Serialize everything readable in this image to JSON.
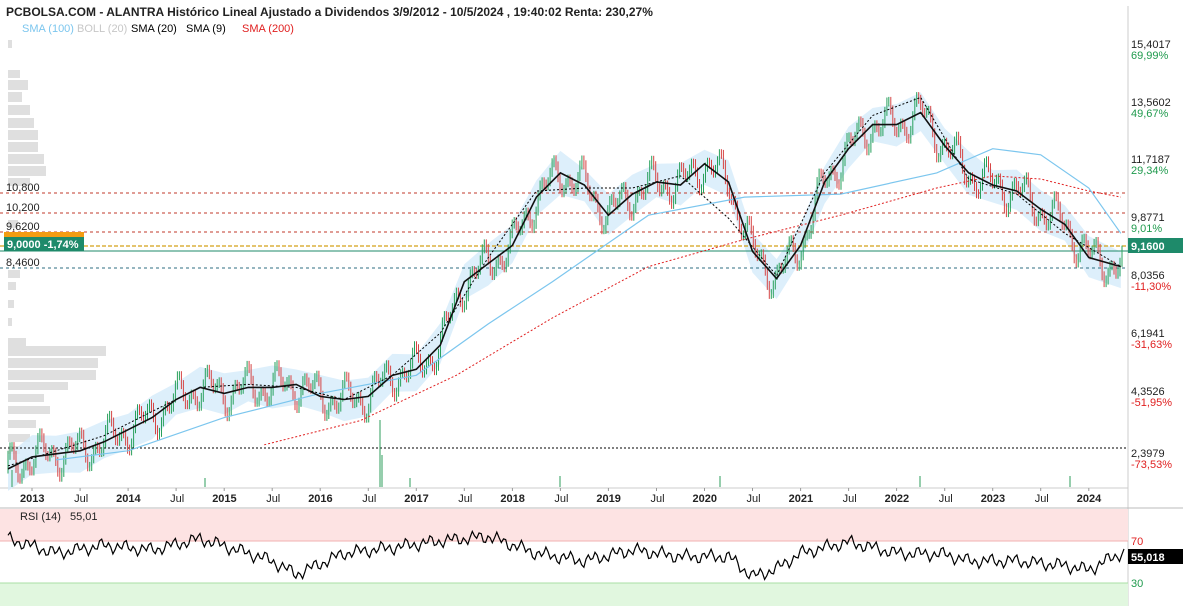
{
  "header": {
    "title": "PCBOLSA.COM - ALANTRA Histórico Lineal Ajustado a Dividendos 3/9/2012 - 10/5/2024 , 19:40:02 Renta: 230,27%"
  },
  "legend": [
    {
      "label": "SMA (100)",
      "color": "#7cc6ee"
    },
    {
      "label": "BOLL (20)",
      "color": "#c7c7c7"
    },
    {
      "label": "SMA (20)",
      "color": "#000000"
    },
    {
      "label": "SMA (9)",
      "color": "#000000"
    },
    {
      "label": "SMA (200)",
      "color": "#e02020"
    }
  ],
  "price_axis": [
    {
      "price": "15,4017",
      "pct": "69,99%",
      "pct_color": "#1f9a4d"
    },
    {
      "price": "13,5602",
      "pct": "49,67%",
      "pct_color": "#1f9a4d"
    },
    {
      "price": "11,7187",
      "pct": "29,34%",
      "pct_color": "#1f9a4d"
    },
    {
      "price": "9,8771",
      "pct": "9,01%",
      "pct_color": "#1f9a4d"
    },
    {
      "price": "8,0356",
      "pct": "-11,30%",
      "pct_color": "#e02020"
    },
    {
      "price": "6,1941",
      "pct": "-31,63%",
      "pct_color": "#e02020"
    },
    {
      "price": "4,3526",
      "pct": "-51,95%",
      "pct_color": "#e02020"
    },
    {
      "price": "2,3979",
      "pct": "-73,53%",
      "pct_color": "#e02020"
    }
  ],
  "level_labels": [
    "10,800",
    "10,200",
    "9,6200",
    "8,4600"
  ],
  "current_label": "9,0000  -1,74%",
  "last_price_badge": "9,1600",
  "time_axis": [
    "2013",
    "Jul",
    "2014",
    "Jul",
    "2015",
    "Jul",
    "2016",
    "Jul",
    "2017",
    "Jul",
    "2018",
    "Jul",
    "2019",
    "Jul",
    "2020",
    "Jul",
    "2021",
    "Jul",
    "2022",
    "Jul",
    "2023",
    "Jul",
    "2024"
  ],
  "rsi": {
    "label": "RSI (14)",
    "value": "55,01",
    "badge": "55,018",
    "levels": [
      "70",
      "30"
    ]
  },
  "chart_data": {
    "type": "line",
    "title": "PCBOLSA.COM - ALANTRA Histórico Lineal Ajustado a Dividendos 3/9/2012 - 10/5/2024 , 19:40:02 Renta: 230,27%",
    "x_range": [
      "2012-09-03",
      "2024-05-10"
    ],
    "ylim": [
      1.9,
      16.4
    ],
    "y_scale": "linear",
    "grid": false,
    "horizontal_levels": [
      10.8,
      10.2,
      9.62,
      9.0,
      8.46,
      2.4
    ],
    "last_price": 9.16,
    "series": [
      {
        "name": "SMA (20)",
        "x": [
          "2012-10",
          "2013-01",
          "2013-04",
          "2013-07",
          "2013-10",
          "2014-01",
          "2014-04",
          "2014-07",
          "2014-10",
          "2015-01",
          "2015-04",
          "2015-07",
          "2015-10",
          "2016-01",
          "2016-04",
          "2016-07",
          "2016-10",
          "2017-01",
          "2017-04",
          "2017-07",
          "2017-10",
          "2018-01",
          "2018-04",
          "2018-07",
          "2018-10",
          "2019-01",
          "2019-04",
          "2019-07",
          "2019-10",
          "2020-01",
          "2020-04",
          "2020-07",
          "2020-10",
          "2021-01",
          "2021-04",
          "2021-07",
          "2021-10",
          "2022-01",
          "2022-04",
          "2022-07",
          "2022-10",
          "2023-01",
          "2023-04",
          "2023-07",
          "2023-10",
          "2024-01",
          "2024-05"
        ],
        "values": [
          2.2,
          2.6,
          2.7,
          2.8,
          3.1,
          3.5,
          3.9,
          4.5,
          4.9,
          4.7,
          4.9,
          4.9,
          5.0,
          4.6,
          4.5,
          4.6,
          5.3,
          5.5,
          6.3,
          8.4,
          9.0,
          9.6,
          11.2,
          12.0,
          11.6,
          10.6,
          11.3,
          11.7,
          11.6,
          12.3,
          11.7,
          9.4,
          8.5,
          9.6,
          11.7,
          12.8,
          13.6,
          13.6,
          14.0,
          12.9,
          12.0,
          11.6,
          11.4,
          10.8,
          10.3,
          9.2,
          8.9
        ]
      },
      {
        "name": "SMA (9)",
        "x": [
          "2012-10",
          "2013-04",
          "2013-10",
          "2014-04",
          "2014-10",
          "2015-04",
          "2015-10",
          "2016-04",
          "2016-10",
          "2017-04",
          "2017-10",
          "2018-04",
          "2018-10",
          "2019-04",
          "2019-10",
          "2020-04",
          "2020-10",
          "2021-04",
          "2021-10",
          "2022-04",
          "2022-10",
          "2023-04",
          "2023-10",
          "2024-05"
        ],
        "values": [
          2.3,
          2.8,
          3.3,
          4.1,
          4.9,
          5.0,
          4.9,
          4.5,
          5.3,
          6.7,
          9.2,
          11.4,
          11.5,
          11.5,
          11.9,
          10.5,
          8.6,
          12.0,
          13.9,
          14.5,
          11.8,
          11.3,
          10.0,
          8.9
        ]
      },
      {
        "name": "SMA (100)",
        "x": [
          "2013-04",
          "2014-01",
          "2015-01",
          "2016-01",
          "2017-01",
          "2017-10",
          "2018-06",
          "2019-06",
          "2020-06",
          "2021-06",
          "2022-06",
          "2023-01",
          "2023-07",
          "2024-01",
          "2024-05"
        ],
        "values": [
          2.5,
          2.8,
          3.9,
          4.7,
          5.3,
          7.0,
          8.4,
          10.6,
          11.2,
          11.3,
          12.0,
          12.8,
          12.6,
          11.5,
          10.0
        ]
      },
      {
        "name": "SMA (200)",
        "x": [
          "2015-06",
          "2016-06",
          "2017-06",
          "2018-06",
          "2019-06",
          "2020-06",
          "2021-06",
          "2022-06",
          "2023-01",
          "2023-07",
          "2024-01",
          "2024-05"
        ],
        "values": [
          3.0,
          3.8,
          5.3,
          7.2,
          8.9,
          9.8,
          10.6,
          11.5,
          11.9,
          11.8,
          11.4,
          11.2
        ]
      }
    ],
    "rsi_series": {
      "name": "RSI (14)",
      "x": [
        "2012-10",
        "2013-04",
        "2013-10",
        "2014-04",
        "2014-10",
        "2015-04",
        "2015-07",
        "2015-10",
        "2016-04",
        "2016-10",
        "2017-04",
        "2017-10",
        "2018-04",
        "2018-10",
        "2019-04",
        "2019-10",
        "2020-04",
        "2020-07",
        "2020-10",
        "2021-01",
        "2021-07",
        "2022-01",
        "2022-07",
        "2022-10",
        "2023-04",
        "2023-10",
        "2024-01",
        "2024-05"
      ],
      "values": [
        68,
        55,
        62,
        58,
        68,
        55,
        48,
        36,
        55,
        60,
        66,
        70,
        55,
        48,
        58,
        52,
        52,
        34,
        41,
        55,
        65,
        55,
        54,
        48,
        48,
        44,
        40,
        55
      ]
    }
  }
}
